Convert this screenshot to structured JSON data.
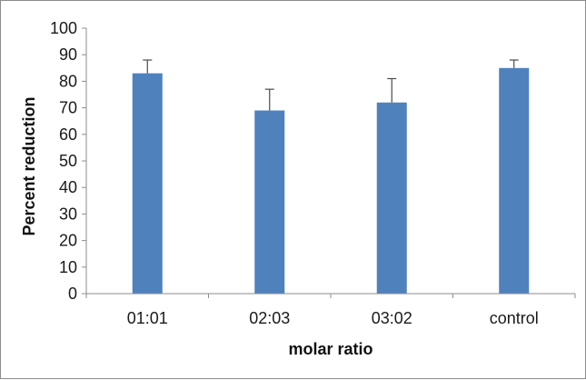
{
  "chart_data": {
    "type": "bar",
    "categories": [
      "01:01",
      "02:03",
      "03:02",
      "control"
    ],
    "values": [
      83,
      69,
      72,
      85
    ],
    "error_bars": [
      5,
      8,
      9,
      3
    ],
    "title": "",
    "xlabel": "molar ratio",
    "ylabel": "Percent reduction",
    "ylim": [
      0,
      100
    ],
    "yticks": [
      "0",
      "10",
      "20",
      "30",
      "40",
      "50",
      "60",
      "70",
      "80",
      "90",
      "100"
    ],
    "grid": false,
    "legend": "none",
    "colors": {
      "bar": "#4f81bd",
      "axis": "#8c8c8c",
      "error": "#4a4a4a"
    }
  }
}
